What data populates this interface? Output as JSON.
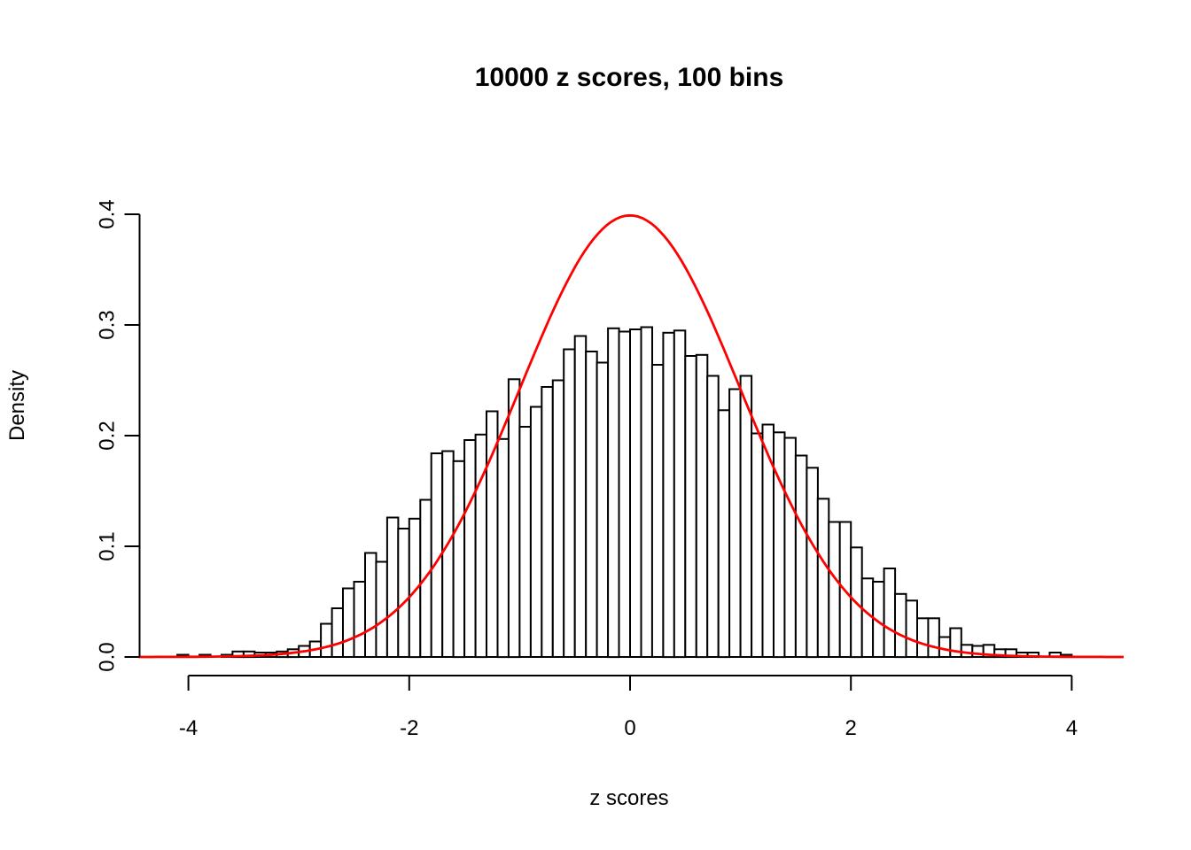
{
  "page": {
    "background_color": "#ffffff",
    "foreground_color": "#000000"
  },
  "chart_data": {
    "type": "bar",
    "subtype": "histogram-with-density-curve",
    "title": "10000 z scores, 100 bins",
    "xlabel": "z scores",
    "ylabel": "Density",
    "x_tick_values": [
      -4,
      -2,
      0,
      2,
      4
    ],
    "x_tick_labels": [
      "-4",
      "-2",
      "0",
      "2",
      "4"
    ],
    "y_tick_values": [
      0.0,
      0.1,
      0.2,
      0.3,
      0.4
    ],
    "y_tick_labels": [
      "0.0",
      "0.1",
      "0.2",
      "0.3",
      "0.4"
    ],
    "xlim": [
      -4.45,
      4.47
    ],
    "ylim": [
      0.0,
      0.4
    ],
    "grid": false,
    "legend": "none",
    "bin_start": -4.1,
    "bin_width": 0.1,
    "densities": [
      0.002,
      0.0,
      0.002,
      0.0,
      0.002,
      0.005,
      0.005,
      0.004,
      0.004,
      0.005,
      0.007,
      0.01,
      0.014,
      0.03,
      0.044,
      0.062,
      0.068,
      0.094,
      0.086,
      0.126,
      0.116,
      0.125,
      0.142,
      0.184,
      0.186,
      0.177,
      0.196,
      0.201,
      0.222,
      0.197,
      0.251,
      0.208,
      0.226,
      0.244,
      0.25,
      0.278,
      0.29,
      0.276,
      0.266,
      0.297,
      0.294,
      0.296,
      0.298,
      0.264,
      0.293,
      0.295,
      0.272,
      0.273,
      0.254,
      0.223,
      0.242,
      0.254,
      0.202,
      0.21,
      0.203,
      0.198,
      0.182,
      0.171,
      0.143,
      0.122,
      0.122,
      0.099,
      0.071,
      0.068,
      0.08,
      0.057,
      0.051,
      0.035,
      0.035,
      0.018,
      0.026,
      0.011,
      0.01,
      0.011,
      0.007,
      0.007,
      0.004,
      0.004,
      0.0,
      0.004,
      0.002,
      0.0
    ],
    "bar_fill": "#ffffff",
    "bar_stroke": "#000000",
    "overlay_curve": {
      "name": "standard normal density",
      "formula": "y = exp(-z*z/2)/sqrt(2*pi)",
      "color": "#ff0000",
      "peak_value": 0.3989
    }
  }
}
